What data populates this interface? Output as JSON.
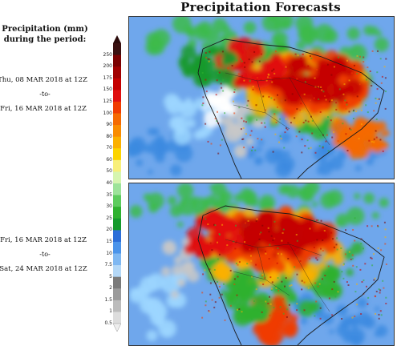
{
  "header": {
    "title": "Precipitation Forecasts"
  },
  "legend": {
    "title_line1": "Precipitation (mm)",
    "title_line2": "during the period:",
    "colorbar": {
      "values": [
        "250",
        "200",
        "175",
        "150",
        "125",
        "100",
        "90",
        "80",
        "70",
        "60",
        "50",
        "40",
        "35",
        "30",
        "25",
        "20",
        "15",
        "10",
        "7.5",
        "5",
        "2",
        "1.5",
        "1",
        "0.5"
      ],
      "colors": [
        "#3a1010",
        "#7a0000",
        "#a10000",
        "#c40000",
        "#e01010",
        "#f03c00",
        "#f56a00",
        "#f98c00",
        "#fbb000",
        "#fcd400",
        "#f8ef7a",
        "#d6f5b0",
        "#9de39a",
        "#5dcc5d",
        "#2fb12f",
        "#159a2c",
        "#2c6ed8",
        "#4b94ea",
        "#7fb8f2",
        "#b4d8f7",
        "#7a7a7a",
        "#9b9b9b",
        "#bcbcbc",
        "#dddddd"
      ]
    }
  },
  "panels": [
    {
      "from": "Thu, 08 MAR 2018 at 12Z",
      "sep": "-to-",
      "to": "Fri, 16 MAR 2018 at 12Z"
    },
    {
      "from": "Fri, 16 MAR 2018 at 12Z",
      "sep": "-to-",
      "to": "Sat, 24 MAR 2018 at 12Z"
    }
  ]
}
